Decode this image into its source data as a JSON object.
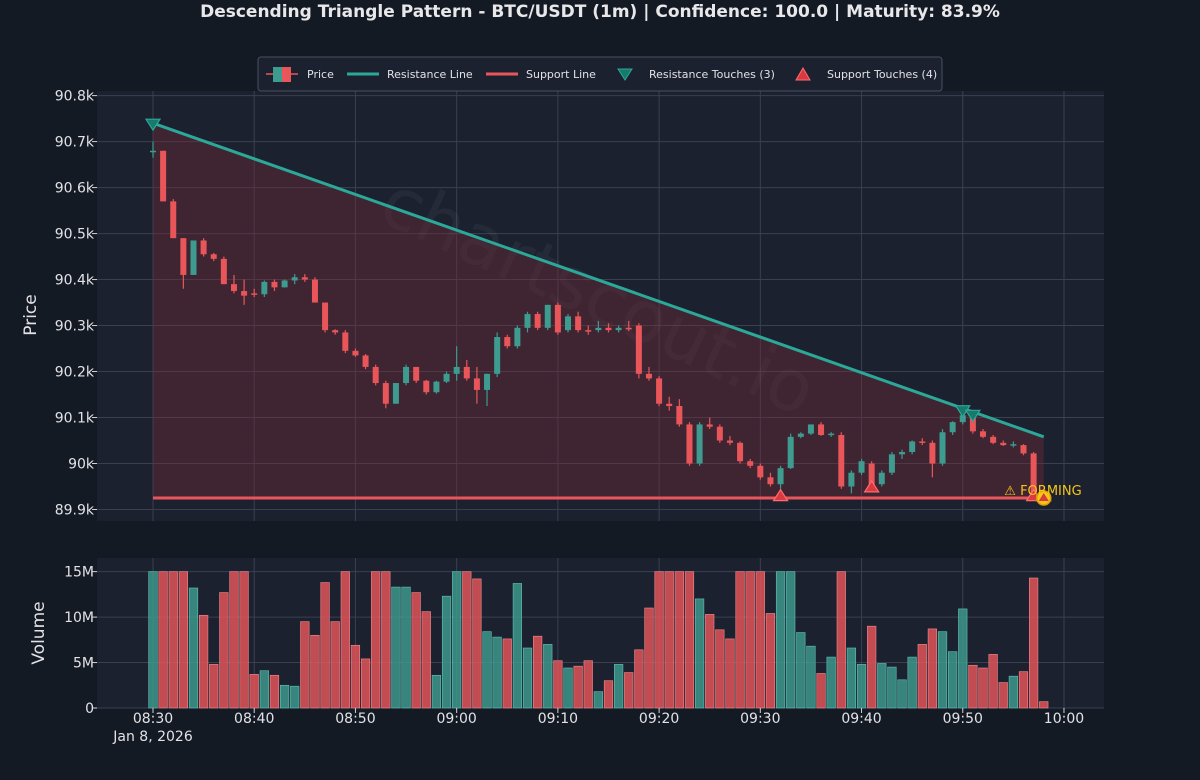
{
  "chart_data": {
    "type": "candlestick",
    "title": "Descending Triangle Pattern - BTC/USDT (1m) | Confidence: 100.0 | Maturity: 83.9%",
    "watermark": "chartscout.io",
    "xlabel": "",
    "ylabel": "Price",
    "volume_ylabel": "Volume",
    "x_tick_labels": [
      "08:30",
      "08:40",
      "08:50",
      "09:00",
      "09:10",
      "09:20",
      "09:30",
      "09:40",
      "09:50",
      "10:00"
    ],
    "x_tick_minutes": [
      0,
      10,
      20,
      30,
      40,
      50,
      60,
      70,
      80,
      90
    ],
    "date_label": "Jan 8, 2026",
    "price_ylim": [
      89875,
      90810
    ],
    "price_ticks": [
      89900,
      90000,
      90100,
      90200,
      90300,
      90400,
      90500,
      90600,
      90700,
      90800
    ],
    "price_tick_labels": [
      "89.9k",
      "90k",
      "90.1k",
      "90.2k",
      "90.3k",
      "90.4k",
      "90.5k",
      "90.6k",
      "90.7k",
      "90.8k"
    ],
    "volume_ylim": [
      0,
      16500000
    ],
    "volume_ticks": [
      0,
      5000000,
      10000000,
      15000000
    ],
    "volume_tick_labels": [
      "0",
      "5M",
      "10M",
      "15M"
    ],
    "legend": [
      "Price",
      "Resistance Line",
      "Support Line",
      "Resistance Touches (3)",
      "Support Touches (4)"
    ],
    "legend_placement": "top-center",
    "forming_label": "⚠ FORMING",
    "colors": {
      "up": "#3d9b8f",
      "down": "#e8565a",
      "resistance": "#2ba898",
      "support": "#e8565a",
      "triangle_fill": "#7a2a38",
      "forming": "#f5c518"
    },
    "resistance_line": {
      "x": [
        0,
        88
      ],
      "y": [
        90740,
        90058
      ]
    },
    "support_line": {
      "x": [
        0,
        88
      ],
      "y": [
        89925,
        89925
      ]
    },
    "resistance_touches": [
      {
        "t": 0,
        "price": 90740
      },
      {
        "t": 80,
        "price": 90117
      },
      {
        "t": 81,
        "price": 90107
      }
    ],
    "support_touches": [
      {
        "t": 62,
        "price": 89928
      },
      {
        "t": 71,
        "price": 89947
      },
      {
        "t": 87,
        "price": 89928
      },
      {
        "t": 88,
        "price": 89928
      }
    ],
    "forming_marker": {
      "t": 88,
      "price": 89925
    },
    "candles": [
      {
        "t": 0,
        "o": 90678,
        "h": 90700,
        "l": 90665,
        "c": 90680,
        "v": 15000000
      },
      {
        "t": 1,
        "o": 90680,
        "h": 90680,
        "l": 90570,
        "c": 90570,
        "v": 15000000
      },
      {
        "t": 2,
        "o": 90570,
        "h": 90575,
        "l": 90490,
        "c": 90490,
        "v": 15000000
      },
      {
        "t": 3,
        "o": 90490,
        "h": 90490,
        "l": 90380,
        "c": 90410,
        "v": 15000000
      },
      {
        "t": 4,
        "o": 90410,
        "h": 90485,
        "l": 90410,
        "c": 90485,
        "v": 13200000
      },
      {
        "t": 5,
        "o": 90485,
        "h": 90490,
        "l": 90450,
        "c": 90455,
        "v": 10200000
      },
      {
        "t": 6,
        "o": 90455,
        "h": 90458,
        "l": 90440,
        "c": 90445,
        "v": 4800000
      },
      {
        "t": 7,
        "o": 90445,
        "h": 90450,
        "l": 90390,
        "c": 90390,
        "v": 12700000
      },
      {
        "t": 8,
        "o": 90390,
        "h": 90410,
        "l": 90370,
        "c": 90375,
        "v": 15000000
      },
      {
        "t": 9,
        "o": 90375,
        "h": 90400,
        "l": 90345,
        "c": 90365,
        "v": 15000000
      },
      {
        "t": 10,
        "o": 90370,
        "h": 90380,
        "l": 90362,
        "c": 90368,
        "v": 3700000
      },
      {
        "t": 11,
        "o": 90368,
        "h": 90398,
        "l": 90362,
        "c": 90395,
        "v": 4100000
      },
      {
        "t": 12,
        "o": 90395,
        "h": 90400,
        "l": 90375,
        "c": 90383,
        "v": 3600000
      },
      {
        "t": 13,
        "o": 90383,
        "h": 90400,
        "l": 90383,
        "c": 90398,
        "v": 2500000
      },
      {
        "t": 14,
        "o": 90398,
        "h": 90412,
        "l": 90390,
        "c": 90405,
        "v": 2400000
      },
      {
        "t": 15,
        "o": 90405,
        "h": 90412,
        "l": 90395,
        "c": 90400,
        "v": 9500000
      },
      {
        "t": 16,
        "o": 90400,
        "h": 90405,
        "l": 90350,
        "c": 90350,
        "v": 8000000
      },
      {
        "t": 17,
        "o": 90350,
        "h": 90350,
        "l": 90285,
        "c": 90290,
        "v": 13800000
      },
      {
        "t": 18,
        "o": 90290,
        "h": 90292,
        "l": 90280,
        "c": 90285,
        "v": 9500000
      },
      {
        "t": 19,
        "o": 90285,
        "h": 90290,
        "l": 90240,
        "c": 90245,
        "v": 15000000
      },
      {
        "t": 20,
        "o": 90245,
        "h": 90250,
        "l": 90232,
        "c": 90235,
        "v": 6900000
      },
      {
        "t": 21,
        "o": 90235,
        "h": 90238,
        "l": 90205,
        "c": 90210,
        "v": 5400000
      },
      {
        "t": 22,
        "o": 90210,
        "h": 90215,
        "l": 90170,
        "c": 90175,
        "v": 15000000
      },
      {
        "t": 23,
        "o": 90175,
        "h": 90180,
        "l": 90120,
        "c": 90130,
        "v": 15000000
      },
      {
        "t": 24,
        "o": 90130,
        "h": 90175,
        "l": 90130,
        "c": 90175,
        "v": 13300000
      },
      {
        "t": 25,
        "o": 90175,
        "h": 90215,
        "l": 90170,
        "c": 90210,
        "v": 13300000
      },
      {
        "t": 26,
        "o": 90210,
        "h": 90210,
        "l": 90175,
        "c": 90180,
        "v": 12700000
      },
      {
        "t": 27,
        "o": 90180,
        "h": 90182,
        "l": 90150,
        "c": 90155,
        "v": 10600000
      },
      {
        "t": 28,
        "o": 90155,
        "h": 90180,
        "l": 90152,
        "c": 90178,
        "v": 3600000
      },
      {
        "t": 29,
        "o": 90178,
        "h": 90200,
        "l": 90175,
        "c": 90195,
        "v": 12300000
      },
      {
        "t": 30,
        "o": 90195,
        "h": 90255,
        "l": 90180,
        "c": 90210,
        "v": 15000000
      },
      {
        "t": 31,
        "o": 90210,
        "h": 90225,
        "l": 90180,
        "c": 90185,
        "v": 15000000
      },
      {
        "t": 32,
        "o": 90185,
        "h": 90210,
        "l": 90130,
        "c": 90160,
        "v": 14200000
      },
      {
        "t": 33,
        "o": 90160,
        "h": 90195,
        "l": 90125,
        "c": 90195,
        "v": 8400000
      },
      {
        "t": 34,
        "o": 90195,
        "h": 90285,
        "l": 90188,
        "c": 90275,
        "v": 7800000
      },
      {
        "t": 35,
        "o": 90275,
        "h": 90280,
        "l": 90250,
        "c": 90255,
        "v": 7600000
      },
      {
        "t": 36,
        "o": 90255,
        "h": 90300,
        "l": 90250,
        "c": 90295,
        "v": 13700000
      },
      {
        "t": 37,
        "o": 90295,
        "h": 90330,
        "l": 90285,
        "c": 90325,
        "v": 6600000
      },
      {
        "t": 38,
        "o": 90325,
        "h": 90330,
        "l": 90290,
        "c": 90295,
        "v": 7900000
      },
      {
        "t": 39,
        "o": 90295,
        "h": 90345,
        "l": 90290,
        "c": 90345,
        "v": 7000000
      },
      {
        "t": 40,
        "o": 90345,
        "h": 90350,
        "l": 90280,
        "c": 90285,
        "v": 5200000
      },
      {
        "t": 41,
        "o": 90290,
        "h": 90325,
        "l": 90285,
        "c": 90320,
        "v": 4400000
      },
      {
        "t": 42,
        "o": 90320,
        "h": 90330,
        "l": 90285,
        "c": 90290,
        "v": 4600000
      },
      {
        "t": 43,
        "o": 90290,
        "h": 90300,
        "l": 90280,
        "c": 90288,
        "v": 5200000
      },
      {
        "t": 44,
        "o": 90290,
        "h": 90310,
        "l": 90285,
        "c": 90295,
        "v": 1800000
      },
      {
        "t": 45,
        "o": 90295,
        "h": 90305,
        "l": 90285,
        "c": 90290,
        "v": 3000000
      },
      {
        "t": 46,
        "o": 90290,
        "h": 90300,
        "l": 90285,
        "c": 90295,
        "v": 4800000
      },
      {
        "t": 47,
        "o": 90295,
        "h": 90310,
        "l": 90288,
        "c": 90292,
        "v": 3900000
      },
      {
        "t": 48,
        "o": 90300,
        "h": 90305,
        "l": 90185,
        "c": 90195,
        "v": 6400000
      },
      {
        "t": 49,
        "o": 90195,
        "h": 90210,
        "l": 90180,
        "c": 90185,
        "v": 11000000
      },
      {
        "t": 50,
        "o": 90185,
        "h": 90190,
        "l": 90125,
        "c": 90130,
        "v": 15000000
      },
      {
        "t": 51,
        "o": 90130,
        "h": 90145,
        "l": 90115,
        "c": 90125,
        "v": 15000000
      },
      {
        "t": 52,
        "o": 90125,
        "h": 90140,
        "l": 90080,
        "c": 90085,
        "v": 15000000
      },
      {
        "t": 53,
        "o": 90085,
        "h": 90090,
        "l": 89995,
        "c": 90000,
        "v": 15000000
      },
      {
        "t": 54,
        "o": 90000,
        "h": 90090,
        "l": 89995,
        "c": 90085,
        "v": 12000000
      },
      {
        "t": 55,
        "o": 90085,
        "h": 90100,
        "l": 90075,
        "c": 90080,
        "v": 10300000
      },
      {
        "t": 56,
        "o": 90080,
        "h": 90085,
        "l": 90045,
        "c": 90050,
        "v": 8600000
      },
      {
        "t": 57,
        "o": 90050,
        "h": 90060,
        "l": 90040,
        "c": 90045,
        "v": 7600000
      },
      {
        "t": 58,
        "o": 90045,
        "h": 90048,
        "l": 90000,
        "c": 90005,
        "v": 15000000
      },
      {
        "t": 59,
        "o": 90005,
        "h": 90010,
        "l": 89990,
        "c": 89995,
        "v": 15000000
      },
      {
        "t": 60,
        "o": 89995,
        "h": 90000,
        "l": 89965,
        "c": 89970,
        "v": 15000000
      },
      {
        "t": 61,
        "o": 89970,
        "h": 89980,
        "l": 89950,
        "c": 89955,
        "v": 10400000
      },
      {
        "t": 62,
        "o": 89955,
        "h": 89995,
        "l": 89945,
        "c": 89990,
        "v": 15000000
      },
      {
        "t": 63,
        "o": 89990,
        "h": 90065,
        "l": 89988,
        "c": 90058,
        "v": 15000000
      },
      {
        "t": 64,
        "o": 90058,
        "h": 90068,
        "l": 90055,
        "c": 90065,
        "v": 8300000
      },
      {
        "t": 65,
        "o": 90065,
        "h": 90085,
        "l": 90062,
        "c": 90085,
        "v": 6800000
      },
      {
        "t": 66,
        "o": 90085,
        "h": 90090,
        "l": 90060,
        "c": 90062,
        "v": 3800000
      },
      {
        "t": 67,
        "o": 90062,
        "h": 90068,
        "l": 90058,
        "c": 90065,
        "v": 5600000
      },
      {
        "t": 68,
        "o": 90062,
        "h": 90068,
        "l": 89945,
        "c": 89950,
        "v": 15000000
      },
      {
        "t": 69,
        "o": 89950,
        "h": 89985,
        "l": 89935,
        "c": 89980,
        "v": 6600000
      },
      {
        "t": 70,
        "o": 89980,
        "h": 90010,
        "l": 89975,
        "c": 90005,
        "v": 4800000
      },
      {
        "t": 71,
        "o": 90000,
        "h": 90005,
        "l": 89950,
        "c": 89955,
        "v": 9000000
      },
      {
        "t": 72,
        "o": 89955,
        "h": 89985,
        "l": 89950,
        "c": 89980,
        "v": 4900000
      },
      {
        "t": 73,
        "o": 89980,
        "h": 90025,
        "l": 89975,
        "c": 90020,
        "v": 4500000
      },
      {
        "t": 74,
        "o": 90020,
        "h": 90030,
        "l": 90010,
        "c": 90025,
        "v": 3100000
      },
      {
        "t": 75,
        "o": 90025,
        "h": 90050,
        "l": 90020,
        "c": 90048,
        "v": 5600000
      },
      {
        "t": 76,
        "o": 90048,
        "h": 90055,
        "l": 90040,
        "c": 90045,
        "v": 7000000
      },
      {
        "t": 77,
        "o": 90045,
        "h": 90050,
        "l": 89970,
        "c": 90000,
        "v": 8700000
      },
      {
        "t": 78,
        "o": 90000,
        "h": 90075,
        "l": 89995,
        "c": 90068,
        "v": 8400000
      },
      {
        "t": 79,
        "o": 90068,
        "h": 90092,
        "l": 90062,
        "c": 90090,
        "v": 6200000
      },
      {
        "t": 80,
        "o": 90090,
        "h": 90117,
        "l": 90085,
        "c": 90105,
        "v": 10900000
      },
      {
        "t": 81,
        "o": 90105,
        "h": 90107,
        "l": 90065,
        "c": 90070,
        "v": 4700000
      },
      {
        "t": 82,
        "o": 90070,
        "h": 90075,
        "l": 90055,
        "c": 90058,
        "v": 4400000
      },
      {
        "t": 83,
        "o": 90058,
        "h": 90062,
        "l": 90042,
        "c": 90045,
        "v": 5900000
      },
      {
        "t": 84,
        "o": 90045,
        "h": 90050,
        "l": 90038,
        "c": 90040,
        "v": 2800000
      },
      {
        "t": 85,
        "o": 90040,
        "h": 90048,
        "l": 90035,
        "c": 90042,
        "v": 3500000
      },
      {
        "t": 86,
        "o": 90040,
        "h": 90042,
        "l": 90018,
        "c": 90022,
        "v": 4000000
      },
      {
        "t": 87,
        "o": 90022,
        "h": 90025,
        "l": 89928,
        "c": 89930,
        "v": 14300000
      },
      {
        "t": 88,
        "o": 89930,
        "h": 89932,
        "l": 89925,
        "c": 89928,
        "v": 700000
      }
    ]
  }
}
